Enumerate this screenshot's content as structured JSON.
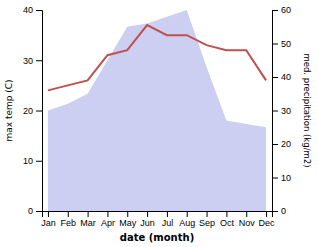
{
  "chart_data": {
    "type": "line",
    "categories": [
      "Jan",
      "Feb",
      "Mar",
      "Apr",
      "May",
      "Jun",
      "Jul",
      "Aug",
      "Sep",
      "Oct",
      "Nov",
      "Dec"
    ],
    "xlabel": "date (month)",
    "ylabel": "max temp (C)",
    "y2label": "med. precipitation (kg/m2)",
    "series": [
      {
        "type": "line",
        "color": "#c0504d",
        "values": [
          24,
          25,
          26,
          31,
          32,
          37,
          35,
          35,
          33,
          32,
          32,
          26
        ]
      },
      {
        "type": "area",
        "axis": "y2",
        "color": "#c6caf0",
        "values": [
          30,
          32,
          35,
          45,
          55,
          56,
          58,
          60,
          43,
          27,
          26,
          25
        ]
      }
    ],
    "ylim": [
      0,
      40
    ],
    "yticks": [
      0,
      10,
      20,
      30,
      40
    ],
    "y2lim": [
      0,
      60
    ],
    "y2ticks": [
      0,
      10,
      20,
      30,
      40,
      50,
      60
    ],
    "grid": false
  }
}
